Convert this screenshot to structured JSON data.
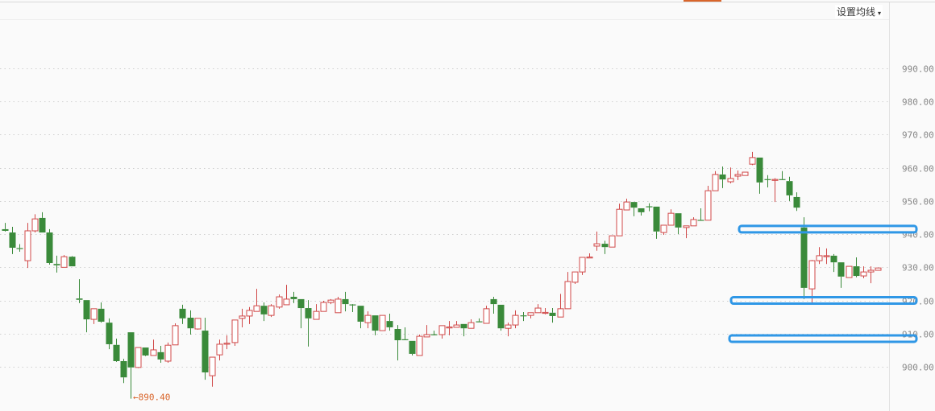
{
  "header": {
    "ma_settings_label": "设置均线",
    "ma_caret": "▾"
  },
  "colors": {
    "up": "#d04848",
    "down": "#3a8a3a",
    "grid": "#cfcfcf",
    "annotation": "#2f97e6",
    "min_label": "#d9652b"
  },
  "chart_data": {
    "type": "candlestick",
    "ohlc_order": [
      "open",
      "high",
      "low",
      "close"
    ],
    "ylim": [
      888,
      1000
    ],
    "yticks": [
      900,
      910,
      920,
      930,
      940,
      950,
      960,
      970,
      980,
      990
    ],
    "ytick_labels": [
      "900.00",
      "910.00",
      "920.00",
      "930.00",
      "940.00",
      "950.00",
      "960.00",
      "970.00",
      "980.00",
      "990.00"
    ],
    "grid": true,
    "up_color_meaning": "red = up, green = down",
    "min_marker": {
      "candle_index": 17,
      "value": 890.4,
      "label": "890.40",
      "arrow": "←"
    },
    "annotations": [
      {
        "type": "horizontal-band",
        "price": 941.5
      },
      {
        "type": "horizontal-band",
        "price": 920.0
      },
      {
        "type": "horizontal-band",
        "price": 908.5
      }
    ],
    "candles": [
      [
        941.5,
        943.4,
        940.8,
        941
      ],
      [
        940.5,
        942.2,
        934,
        935.9
      ],
      [
        935.8,
        937,
        934.7,
        935.6
      ],
      [
        932,
        943.4,
        929.8,
        941
      ],
      [
        941,
        946,
        940.5,
        944.6
      ],
      [
        944.9,
        946.6,
        940.5,
        940.5
      ],
      [
        940.5,
        941.5,
        930.8,
        931.3
      ],
      [
        931,
        933.5,
        928.4,
        930.6
      ],
      [
        930,
        933.7,
        930,
        933.2
      ],
      [
        933.2,
        933.4,
        930.3,
        930.3
      ],
      [
        920.6,
        926.4,
        919.2,
        920.2
      ],
      [
        920.1,
        920.1,
        910.4,
        914.3
      ],
      [
        914.3,
        917.5,
        912.9,
        917.5
      ],
      [
        917.5,
        919.4,
        913.3,
        913.6
      ],
      [
        913.3,
        914.6,
        905.3,
        906.8
      ],
      [
        906.6,
        908.5,
        901.5,
        901.7
      ],
      [
        901.7,
        902.4,
        895.1,
        896.8
      ],
      [
        910.4,
        910.4,
        890.4,
        899.8
      ],
      [
        899.8,
        905.8,
        899.6,
        905.8
      ],
      [
        905.8,
        905.8,
        903.2,
        903.4
      ],
      [
        903.4,
        908.2,
        903.4,
        905.1
      ],
      [
        904.4,
        906.3,
        901.2,
        902.2
      ],
      [
        901.7,
        907.3,
        901.2,
        906.5
      ],
      [
        906.6,
        913.1,
        906.6,
        912.4
      ],
      [
        917.5,
        918.7,
        912.9,
        914.6
      ],
      [
        914.8,
        917,
        909.7,
        911.6
      ],
      [
        911.4,
        914.6,
        911.2,
        914.6
      ],
      [
        910.9,
        914.8,
        896.1,
        898.3
      ],
      [
        897.3,
        902.9,
        894,
        902.9
      ],
      [
        903.6,
        908.2,
        901.9,
        906.8
      ],
      [
        907,
        909.5,
        905.3,
        907.1
      ],
      [
        907.3,
        914.1,
        906.3,
        914.1
      ],
      [
        914.6,
        917.5,
        911.9,
        915.3
      ],
      [
        915.3,
        918,
        912.9,
        917
      ],
      [
        916.7,
        923.5,
        916.7,
        918.4
      ],
      [
        918.4,
        919.4,
        913.8,
        915.8
      ],
      [
        915.5,
        918.9,
        915,
        918.4
      ],
      [
        918,
        921.8,
        917.5,
        921.1
      ],
      [
        918.7,
        924.7,
        918.7,
        920.4
      ],
      [
        921.1,
        922.6,
        919.2,
        920.4
      ],
      [
        920.4,
        920.4,
        911.6,
        917.7
      ],
      [
        917.7,
        920.1,
        906.1,
        914.6
      ],
      [
        914.3,
        918.9,
        914.3,
        916.7
      ],
      [
        916.7,
        919.9,
        916.7,
        919.4
      ],
      [
        919.4,
        920.4,
        918.9,
        920.1
      ],
      [
        916.3,
        921.1,
        916.3,
        920.4
      ],
      [
        920.4,
        922.6,
        916.7,
        918.9
      ],
      [
        918.8,
        918.9,
        916.5,
        918.7
      ],
      [
        918.4,
        918.4,
        911.6,
        913.6
      ],
      [
        913.3,
        916.7,
        911.6,
        915.5
      ],
      [
        915.5,
        915.5,
        909.5,
        910.9
      ],
      [
        910.9,
        915.5,
        910.9,
        915.5
      ],
      [
        913.8,
        916,
        910.9,
        911.9
      ],
      [
        911.4,
        912.6,
        901.9,
        908
      ],
      [
        908.3,
        911.9,
        908,
        908.2
      ],
      [
        907.8,
        907.8,
        903.4,
        903.9
      ],
      [
        903.4,
        909.7,
        903.4,
        909.2
      ],
      [
        909,
        912.6,
        909,
        909.7
      ],
      [
        909.8,
        910.9,
        909.5,
        909.7
      ],
      [
        909.7,
        912.4,
        908.5,
        912.4
      ],
      [
        911.9,
        913.8,
        909.5,
        912
      ],
      [
        911.9,
        913.8,
        911.9,
        912.6
      ],
      [
        912.9,
        912.9,
        909.2,
        911.6
      ],
      [
        911.6,
        914.3,
        911.6,
        913.3
      ],
      [
        913.7,
        914.6,
        913.6,
        913.6
      ],
      [
        913.1,
        918.4,
        913.1,
        917.5
      ],
      [
        920.4,
        921.1,
        916,
        918.9
      ],
      [
        918.7,
        918.7,
        910.9,
        911.6
      ],
      [
        911.6,
        913.3,
        909.2,
        912.6
      ],
      [
        912.6,
        917,
        911.6,
        915.5
      ],
      [
        915.5,
        916.5,
        913.8,
        915.3
      ],
      [
        915.5,
        916.3,
        914.6,
        916.3
      ],
      [
        916.3,
        918.9,
        916.3,
        917.7
      ],
      [
        916.3,
        917.7,
        915.8,
        916.4
      ],
      [
        916.3,
        917.7,
        913.3,
        915.3
      ],
      [
        915,
        922,
        915,
        917.5
      ],
      [
        917.5,
        928.6,
        917.5,
        925.7
      ],
      [
        925.5,
        928.6,
        925,
        928.6
      ],
      [
        928.6,
        933,
        927.7,
        933
      ],
      [
        933,
        934.2,
        932.8,
        933.1
      ],
      [
        936.4,
        940.8,
        935,
        937.1
      ],
      [
        937.1,
        938,
        934,
        936.1
      ],
      [
        936.1,
        939.5,
        936.1,
        939.5
      ],
      [
        939.5,
        949.2,
        939.5,
        947.5
      ],
      [
        947.3,
        950.7,
        947.3,
        949.7
      ],
      [
        949.7,
        949.7,
        945.4,
        948
      ],
      [
        947.8,
        947.8,
        945.6,
        946.6
      ],
      [
        948.4,
        949.3,
        946.9,
        948.3
      ],
      [
        948.3,
        948.3,
        938.6,
        940.8
      ],
      [
        940.5,
        942.7,
        939.8,
        942.7
      ],
      [
        942.7,
        947.5,
        942.7,
        946.3
      ],
      [
        946.3,
        946.3,
        940,
        942
      ],
      [
        942,
        942.5,
        938.8,
        942.5
      ],
      [
        942.5,
        945.1,
        942.5,
        944.4
      ],
      [
        944.3,
        947.8,
        944.2,
        944.2
      ],
      [
        944.2,
        954.6,
        944.2,
        953.1
      ],
      [
        953.1,
        959,
        953.1,
        958
      ],
      [
        958,
        960.4,
        953.9,
        956.5
      ],
      [
        955.8,
        960.1,
        955.3,
        956.8
      ],
      [
        957.5,
        959.2,
        956.3,
        958
      ],
      [
        957.7,
        958.7,
        957.7,
        958.7
      ],
      [
        961.1,
        964.8,
        960.8,
        963.1
      ],
      [
        963.1,
        963.1,
        952.2,
        955.6
      ],
      [
        956.6,
        957.8,
        954.1,
        956.5
      ],
      [
        956.4,
        956.9,
        949.7,
        956.5
      ],
      [
        956.6,
        959,
        956.4,
        956.5
      ],
      [
        956,
        957.3,
        950,
        951.7
      ],
      [
        951.2,
        952.6,
        947,
        948
      ],
      [
        942,
        945.1,
        920.4,
        923.8
      ],
      [
        923.5,
        932.2,
        919.4,
        932
      ],
      [
        932,
        936.1,
        931,
        933.5
      ],
      [
        933.4,
        935.7,
        931,
        933.5
      ],
      [
        933.5,
        934,
        928.6,
        931.5
      ],
      [
        931.5,
        931.5,
        923.8,
        927.2
      ],
      [
        926.9,
        930.3,
        926.9,
        930.3
      ],
      [
        930.3,
        933,
        927,
        927.4
      ],
      [
        927.4,
        930.3,
        926.7,
        928.6
      ],
      [
        928.6,
        930.3,
        925.2,
        929.1
      ],
      [
        929.1,
        929.8,
        929.1,
        929.8
      ]
    ]
  }
}
